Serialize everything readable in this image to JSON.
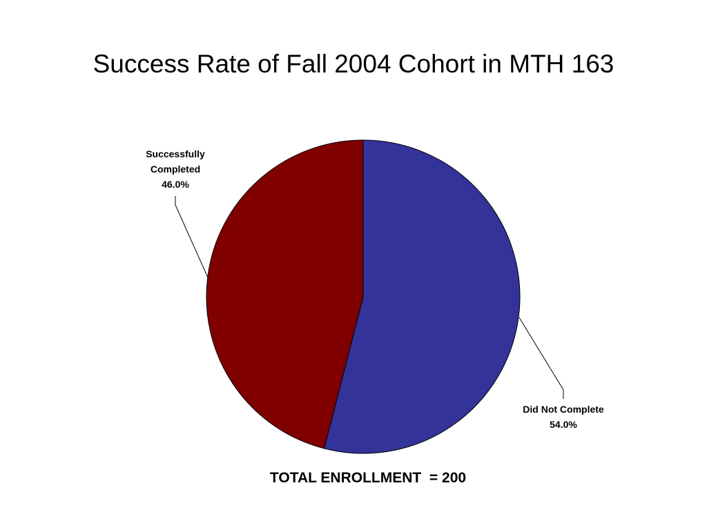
{
  "chart_data": {
    "type": "pie",
    "title": "Success Rate of Fall 2004 Cohort in MTH 163",
    "slices": [
      {
        "label_lines": [
          "Did Not Complete"
        ],
        "value": 54.0,
        "value_label": "54.0%",
        "color": "#333399"
      },
      {
        "label_lines": [
          "Successfully",
          "Completed"
        ],
        "value": 46.0,
        "value_label": "46.0%",
        "color": "#800000"
      }
    ],
    "legend": "none",
    "footer": "TOTAL ENROLLMENT  = 200"
  }
}
